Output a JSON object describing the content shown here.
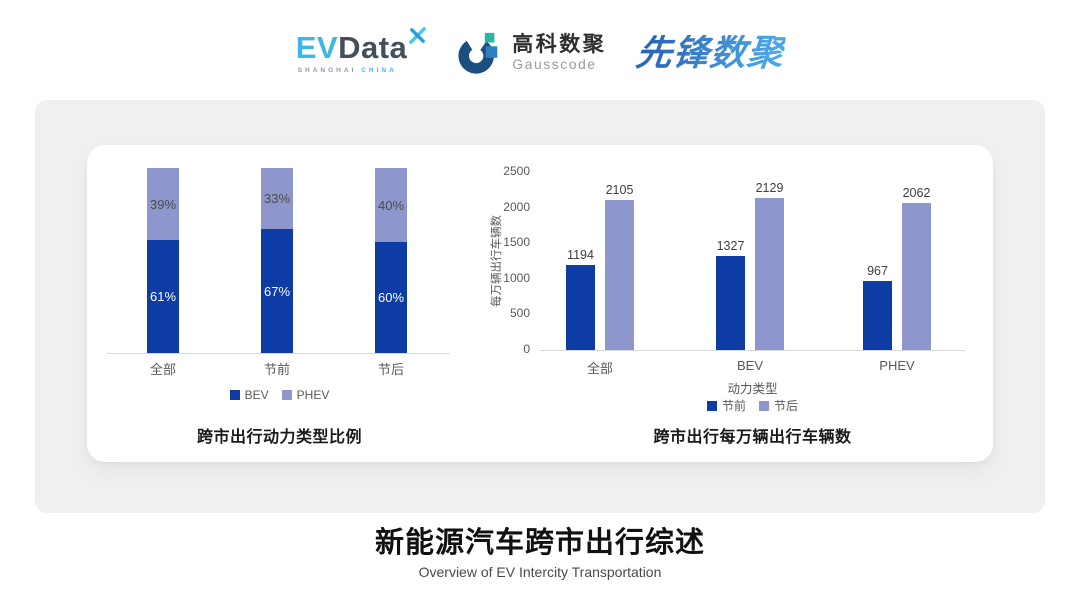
{
  "header": {
    "logos": {
      "evdata": {
        "ev": "EV",
        "data": "Data",
        "sub_left": "SHANGHAI",
        "sub_right": "CHINA"
      },
      "gausscode": {
        "cn": "高科数聚",
        "en": "Gausscode"
      },
      "pioneer": {
        "text": "先锋数聚"
      }
    }
  },
  "chart_data": [
    {
      "type": "bar",
      "subtype": "stacked-100-percent",
      "categories": [
        "全部",
        "节前",
        "节后"
      ],
      "series": [
        {
          "name": "BEV",
          "values": [
            61,
            67,
            60
          ],
          "color": "#0D3CA4",
          "label_color": "#FFFFFF"
        },
        {
          "name": "PHEV",
          "values": [
            39,
            33,
            40
          ],
          "color": "#8D97CE",
          "label_color": "#4A4A4A"
        }
      ],
      "value_format": "percent",
      "title": "跨市出行动力类型比例",
      "xlabel": "",
      "ylabel": "",
      "legend_position": "bottom",
      "grid": false
    },
    {
      "type": "bar",
      "subtype": "grouped",
      "categories": [
        "全部",
        "BEV",
        "PHEV"
      ],
      "series": [
        {
          "name": "节前",
          "values": [
            1194,
            1327,
            967
          ],
          "color": "#0D3CA4"
        },
        {
          "name": "节后",
          "values": [
            2105,
            2129,
            2062
          ],
          "color": "#8D97CE"
        }
      ],
      "title": "跨市出行每万辆出行车辆数",
      "xlabel": "动力类型",
      "ylabel": "每万辆出行车辆数",
      "ylim": [
        0,
        2500
      ],
      "yticks": [
        0,
        500,
        1000,
        1500,
        2000,
        2500
      ],
      "legend_position": "bottom",
      "grid": false
    }
  ],
  "footer": {
    "title": "新能源汽车跨市出行综述",
    "subtitle": "Overview of EV Intercity Transportation"
  },
  "colors": {
    "series_dark_blue": "#0D3CA4",
    "series_light_purple": "#8D97CE",
    "axis_line": "#D9D9D9",
    "tick_text": "#595959",
    "value_text": "#3F3F3F",
    "chart_title_text": "#1A1A1A",
    "card_background": "#F0F0F1",
    "panel_background": "#FFFFFF",
    "evdata_cyan": "#3EB7E4",
    "evdata_dark": "#43505C",
    "gauss_ring_blue": "#1C4E80",
    "gauss_teal": "#26B7A6",
    "gauss_blue": "#2D7FC1",
    "pioneer_blue": "#2F7CC9"
  }
}
